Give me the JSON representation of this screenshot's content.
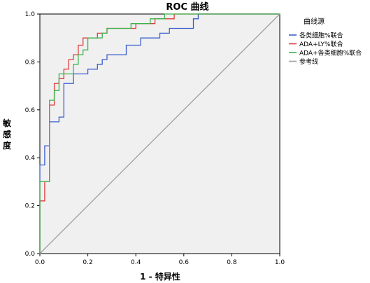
{
  "chart_data": {
    "type": "line",
    "title": "ROC 曲线",
    "xlabel": "1 - 特异性",
    "ylabel": "敏感度",
    "xlim": [
      0,
      1
    ],
    "ylim": [
      0,
      1
    ],
    "x_ticks": [
      "0.0",
      "0.2",
      "0.4",
      "0.6",
      "0.8",
      "1.0"
    ],
    "y_ticks": [
      "0.0",
      "0.2",
      "0.4",
      "0.6",
      "0.8",
      "1.0"
    ],
    "grid": false,
    "legend": {
      "title": "曲线源",
      "position": "right"
    },
    "series": [
      {
        "name": "各类细胞%联合",
        "color": "#3a5fcd",
        "points": [
          [
            0,
            0
          ],
          [
            0,
            0.37
          ],
          [
            0.02,
            0.37
          ],
          [
            0.02,
            0.45
          ],
          [
            0.04,
            0.45
          ],
          [
            0.04,
            0.55
          ],
          [
            0.08,
            0.55
          ],
          [
            0.08,
            0.57
          ],
          [
            0.1,
            0.57
          ],
          [
            0.1,
            0.71
          ],
          [
            0.14,
            0.71
          ],
          [
            0.14,
            0.75
          ],
          [
            0.2,
            0.75
          ],
          [
            0.2,
            0.77
          ],
          [
            0.24,
            0.77
          ],
          [
            0.24,
            0.79
          ],
          [
            0.26,
            0.79
          ],
          [
            0.26,
            0.81
          ],
          [
            0.28,
            0.81
          ],
          [
            0.28,
            0.83
          ],
          [
            0.36,
            0.83
          ],
          [
            0.36,
            0.87
          ],
          [
            0.42,
            0.87
          ],
          [
            0.42,
            0.9
          ],
          [
            0.5,
            0.9
          ],
          [
            0.5,
            0.92
          ],
          [
            0.54,
            0.92
          ],
          [
            0.54,
            0.94
          ],
          [
            0.64,
            0.94
          ],
          [
            0.64,
            0.98
          ],
          [
            0.66,
            0.98
          ],
          [
            0.66,
            1.0
          ],
          [
            1.0,
            1.0
          ]
        ]
      },
      {
        "name": "ADA+LY%联合",
        "color": "#e03c3c",
        "points": [
          [
            0,
            0
          ],
          [
            0,
            0.22
          ],
          [
            0.02,
            0.22
          ],
          [
            0.02,
            0.3
          ],
          [
            0.04,
            0.3
          ],
          [
            0.04,
            0.62
          ],
          [
            0.06,
            0.62
          ],
          [
            0.06,
            0.71
          ],
          [
            0.08,
            0.71
          ],
          [
            0.08,
            0.73
          ],
          [
            0.1,
            0.73
          ],
          [
            0.1,
            0.77
          ],
          [
            0.12,
            0.77
          ],
          [
            0.12,
            0.81
          ],
          [
            0.14,
            0.81
          ],
          [
            0.14,
            0.83
          ],
          [
            0.16,
            0.83
          ],
          [
            0.16,
            0.87
          ],
          [
            0.18,
            0.87
          ],
          [
            0.18,
            0.9
          ],
          [
            0.24,
            0.9
          ],
          [
            0.24,
            0.92
          ],
          [
            0.28,
            0.92
          ],
          [
            0.28,
            0.94
          ],
          [
            0.4,
            0.94
          ],
          [
            0.4,
            0.96
          ],
          [
            0.48,
            0.96
          ],
          [
            0.48,
            0.98
          ],
          [
            0.56,
            0.98
          ],
          [
            0.56,
            1.0
          ],
          [
            1.0,
            1.0
          ]
        ]
      },
      {
        "name": "ADA+各类细胞%联合",
        "color": "#3cb44b",
        "points": [
          [
            0,
            0
          ],
          [
            0,
            0.3
          ],
          [
            0.04,
            0.3
          ],
          [
            0.04,
            0.64
          ],
          [
            0.06,
            0.64
          ],
          [
            0.06,
            0.68
          ],
          [
            0.08,
            0.68
          ],
          [
            0.08,
            0.75
          ],
          [
            0.14,
            0.75
          ],
          [
            0.14,
            0.79
          ],
          [
            0.16,
            0.79
          ],
          [
            0.16,
            0.83
          ],
          [
            0.18,
            0.83
          ],
          [
            0.18,
            0.85
          ],
          [
            0.2,
            0.85
          ],
          [
            0.2,
            0.9
          ],
          [
            0.26,
            0.9
          ],
          [
            0.26,
            0.92
          ],
          [
            0.28,
            0.92
          ],
          [
            0.28,
            0.94
          ],
          [
            0.38,
            0.94
          ],
          [
            0.38,
            0.96
          ],
          [
            0.46,
            0.96
          ],
          [
            0.46,
            0.98
          ],
          [
            0.52,
            0.98
          ],
          [
            0.52,
            1.0
          ],
          [
            1.0,
            1.0
          ]
        ]
      },
      {
        "name": "参考线",
        "color": "#a0a0a0",
        "points": [
          [
            0,
            0
          ],
          [
            1,
            1
          ]
        ]
      }
    ]
  }
}
